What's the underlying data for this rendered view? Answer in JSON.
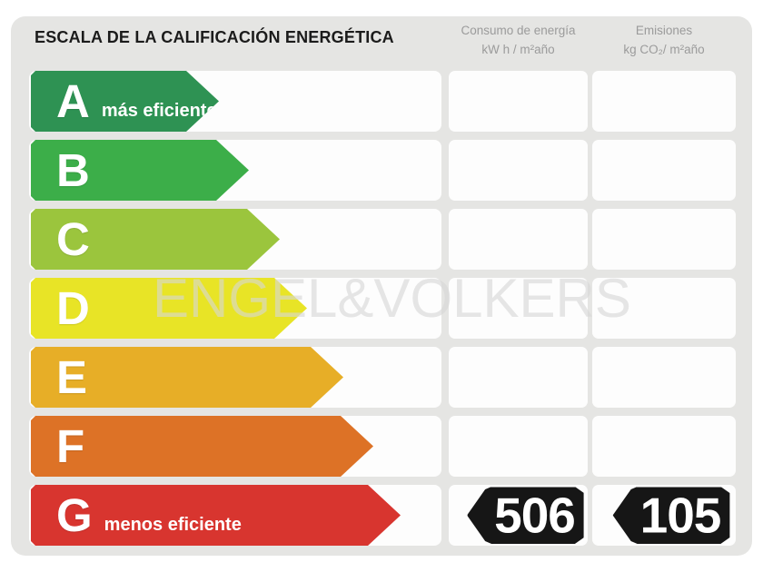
{
  "title": "ESCALA DE LA CALIFICACIÓN ENERGÉTICA",
  "columns": {
    "consumo": {
      "line1": "Consumo de energía",
      "line2": "kW h / m²año"
    },
    "emisiones": {
      "line1": "Emisiones",
      "line2": "kg CO₂/ m²año"
    }
  },
  "watermark": "ENGEL&VOLKERS",
  "scale": {
    "rows": [
      {
        "letter": "A",
        "label": "más eficiente",
        "color": "#2e9253",
        "arrow_width": 207,
        "consumo": "",
        "emisiones": ""
      },
      {
        "letter": "B",
        "color": "#3cae49",
        "arrow_width": 240,
        "consumo": "",
        "emisiones": ""
      },
      {
        "letter": "C",
        "color": "#9bc53d",
        "arrow_width": 274,
        "consumo": "",
        "emisiones": ""
      },
      {
        "letter": "D",
        "color": "#e8e426",
        "arrow_width": 304,
        "consumo": "",
        "emisiones": ""
      },
      {
        "letter": "E",
        "color": "#e7ae27",
        "arrow_width": 344,
        "consumo": "",
        "emisiones": ""
      },
      {
        "letter": "F",
        "color": "#dd7226",
        "arrow_width": 377,
        "consumo": "",
        "emisiones": ""
      },
      {
        "letter": "G",
        "label": "menos eficiente",
        "color": "#d8352f",
        "arrow_width": 407,
        "consumo": "506",
        "emisiones": "105"
      }
    ]
  },
  "rating": {
    "letter": "G",
    "consumo_value": "506",
    "emisiones_value": "105"
  },
  "chart_data": {
    "type": "bar",
    "title": "ESCALA DE LA CALIFICACIÓN ENERGÉTICA",
    "categories": [
      "A",
      "B",
      "C",
      "D",
      "E",
      "F",
      "G"
    ],
    "series": [
      {
        "name": "arrow_relative_length_px",
        "values": [
          207,
          240,
          274,
          304,
          344,
          377,
          407
        ]
      }
    ],
    "category_colors": [
      "#2e9253",
      "#3cae49",
      "#9bc53d",
      "#e8e426",
      "#e7ae27",
      "#dd7226",
      "#d8352f"
    ],
    "annotations": [
      {
        "category": "G",
        "consumo_de_energia_kwh_m2_ano": 506,
        "emisiones_kg_co2_m2_ano": 105
      }
    ],
    "xlabel": "",
    "ylabel": "",
    "legend": [
      "Consumo de energía kW h / m²año",
      "Emisiones kg CO₂/ m²año"
    ],
    "grid": false
  }
}
